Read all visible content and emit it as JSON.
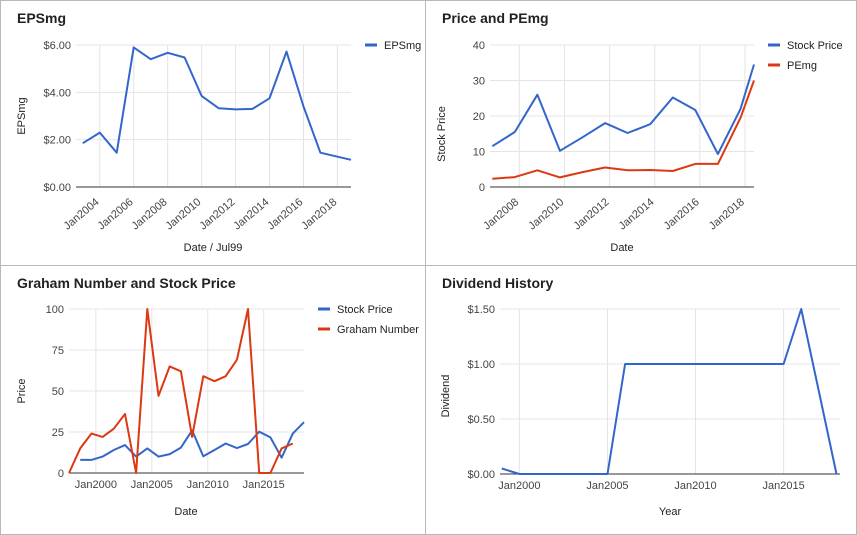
{
  "colors": {
    "blue": "#3366cc",
    "red": "#dc3912",
    "grid": "#e4e4e4",
    "baseline": "#333333"
  },
  "chart_data": [
    {
      "type": "line",
      "title": "EPSmg",
      "xlabel": "Date / Jul99",
      "ylabel": "EPSmg",
      "x": [
        2003,
        2004,
        2005,
        2006,
        2007,
        2008,
        2009,
        2010,
        2011,
        2012,
        2013,
        2014,
        2015,
        2016,
        2017,
        2018,
        2018.8
      ],
      "series": [
        {
          "name": "EPSmg",
          "values": [
            1.85,
            2.3,
            1.45,
            5.9,
            5.4,
            5.67,
            5.47,
            3.85,
            3.33,
            3.28,
            3.3,
            3.75,
            5.72,
            3.4,
            1.45,
            1.28,
            1.15
          ]
        }
      ],
      "ylim": [
        0,
        6
      ],
      "yticks": [
        "$0.00",
        "$2.00",
        "$4.00",
        "$6.00"
      ],
      "xticks": [
        "Jan2004",
        "Jan2006",
        "Jan2008",
        "Jan2010",
        "Jan2012",
        "Jan2014",
        "Jan2016",
        "Jan2018"
      ],
      "legend": "right"
    },
    {
      "type": "line",
      "title": "Price and PEmg",
      "xlabel": "Date",
      "ylabel": "Stock Price",
      "x": [
        2006.8,
        2007.8,
        2008.8,
        2009.8,
        2010.8,
        2011.8,
        2012.8,
        2013.8,
        2014.8,
        2015.8,
        2016.8,
        2017.8,
        2018.4
      ],
      "series": [
        {
          "name": "Stock Price",
          "values": [
            11.5,
            15.5,
            26,
            10.2,
            14,
            18,
            15.2,
            17.7,
            25.2,
            21.7,
            9.3,
            22,
            34.5
          ]
        },
        {
          "name": "PEmg",
          "values": [
            2.3,
            2.8,
            4.7,
            2.7,
            4.2,
            5.5,
            4.7,
            4.8,
            4.5,
            6.5,
            6.5,
            19.5,
            30
          ]
        }
      ],
      "ylim": [
        0,
        40
      ],
      "yticks": [
        "0",
        "10",
        "20",
        "30",
        "40"
      ],
      "xticks": [
        "Jan2008",
        "Jan2010",
        "Jan2012",
        "Jan2014",
        "Jan2016",
        "Jan2018"
      ],
      "legend": "right"
    },
    {
      "type": "line",
      "title": "Graham Number and Stock Price",
      "xlabel": "Date",
      "ylabel": "Price",
      "x": [
        1997.6,
        1998.6,
        1999.6,
        2000.6,
        2001.6,
        2002.6,
        2003.6,
        2004.6,
        2005.6,
        2006.6,
        2007.6,
        2008.6,
        2009.6,
        2010.6,
        2011.6,
        2012.6,
        2013.6,
        2014.6,
        2015.6,
        2016.6,
        2017.6,
        2018.6
      ],
      "series": [
        {
          "name": "Stock Price",
          "values": [
            null,
            8,
            8,
            10,
            14,
            17,
            10,
            15,
            10,
            11.5,
            15.5,
            26,
            10.2,
            14,
            18,
            15.2,
            17.7,
            25.2,
            21.7,
            9.3,
            24,
            31
          ]
        },
        {
          "name": "Graham Number",
          "values": [
            0,
            15,
            24,
            22,
            27,
            36,
            0,
            100,
            47,
            65,
            62,
            22,
            59,
            56,
            59,
            69,
            100,
            0,
            0,
            15,
            18,
            null
          ]
        }
      ],
      "ylim": [
        0,
        100
      ],
      "yticks": [
        "0",
        "25",
        "50",
        "75",
        "100"
      ],
      "xticks": [
        "Jan2000",
        "Jan2005",
        "Jan2010",
        "Jan2015"
      ],
      "legend": "right"
    },
    {
      "type": "line",
      "title": "Dividend History",
      "xlabel": "Year",
      "ylabel": "Dividend",
      "x": [
        1999,
        2000,
        2001,
        2002,
        2003,
        2004,
        2005,
        2006,
        2007,
        2008,
        2009,
        2010,
        2011,
        2012,
        2013,
        2014,
        2015,
        2016,
        2017,
        2018
      ],
      "series": [
        {
          "name": "Dividend",
          "values": [
            0.05,
            0,
            0,
            0,
            0,
            0,
            0,
            1,
            1,
            1,
            1,
            1,
            1,
            1,
            1,
            1,
            1,
            1.5,
            0.75,
            0
          ]
        }
      ],
      "ylim": [
        0,
        1.5
      ],
      "yticks": [
        "$0.00",
        "$0.50",
        "$1.00",
        "$1.50"
      ],
      "xticks": [
        "Jan2000",
        "Jan2005",
        "Jan2010",
        "Jan2015"
      ],
      "legend": "none"
    }
  ]
}
